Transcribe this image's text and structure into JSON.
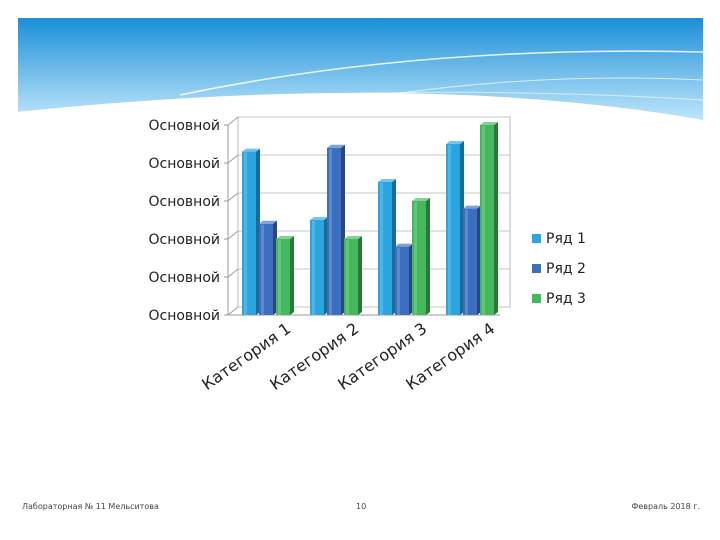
{
  "slide": {
    "footer_left": "Лабораторная № 11 Мельситова",
    "page_number": "10",
    "footer_right": "Февраль 2018 г."
  },
  "colors": {
    "banner_top": "#1b8fd8",
    "banner_bottom": "#bfe6fa",
    "series": [
      "#2aa5e0",
      "#3a6ec0",
      "#43b85c"
    ]
  },
  "chart_data": {
    "type": "bar",
    "categories": [
      "Категория 1",
      "Категория 2",
      "Категория 3",
      "Категория 4"
    ],
    "series": [
      {
        "name": "Ряд 1",
        "values": [
          4.3,
          2.5,
          3.5,
          4.5
        ]
      },
      {
        "name": "Ряд 2",
        "values": [
          2.4,
          4.4,
          1.8,
          2.8
        ]
      },
      {
        "name": "Ряд 3",
        "values": [
          2.0,
          2.0,
          3.0,
          5.0
        ]
      }
    ],
    "ylim": [
      0,
      5
    ],
    "yticks": [
      0,
      1,
      2,
      3,
      4,
      5
    ],
    "ytick_labels": [
      "Основной",
      "Основной",
      "Основной",
      "Основной",
      "Основной",
      "Основной"
    ],
    "grid": true,
    "legend_position": "right",
    "title": "",
    "xlabel": "",
    "ylabel": ""
  }
}
